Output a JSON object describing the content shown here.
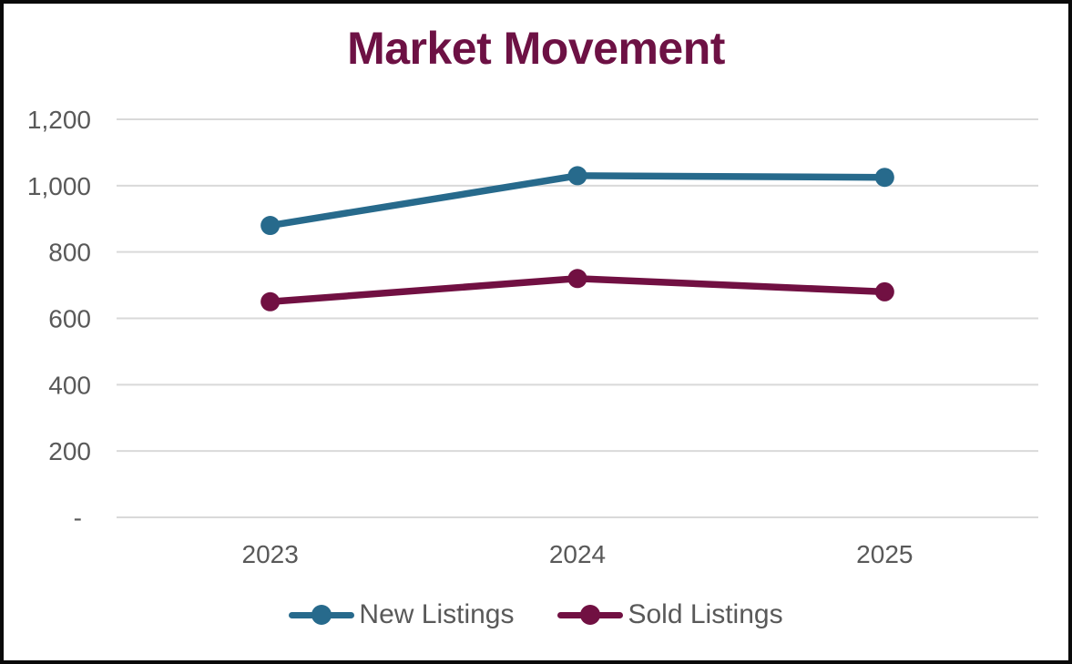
{
  "page": {
    "background_color": "#ffffff",
    "frame_border_color": "#0a0a0a"
  },
  "chart_data": {
    "type": "line",
    "title": "Market Movement",
    "title_color": "#6d1144",
    "categories": [
      "2023",
      "2024",
      "2025"
    ],
    "series": [
      {
        "name": "New Listings",
        "color": "#276a8c",
        "values": [
          880,
          1030,
          1025
        ]
      },
      {
        "name": "Sold Listings",
        "color": "#711042",
        "values": [
          650,
          720,
          680
        ]
      }
    ],
    "y_axis": {
      "min": 0,
      "max": 1200,
      "tick_interval": 200,
      "tick_labels": [
        "-",
        "200",
        "400",
        "600",
        "800",
        "1,000",
        "1,200"
      ]
    },
    "xlabel": "",
    "ylabel": "",
    "grid": true,
    "gridline_color": "#d9d9d9",
    "axis_text_color": "#595959",
    "legend_position": "bottom"
  }
}
